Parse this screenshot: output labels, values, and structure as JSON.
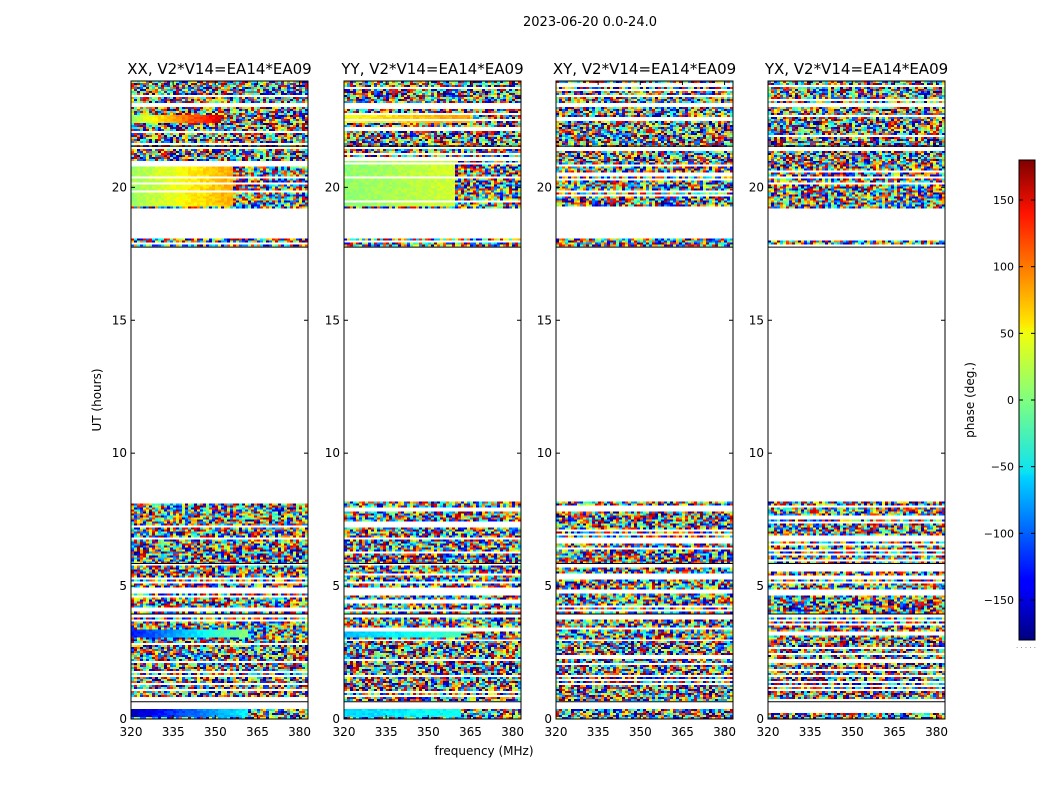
{
  "figure": {
    "title": "2023-06-20 0.0-24.0",
    "xlabel": "frequency (MHz)",
    "ylabel": "UT (hours)"
  },
  "colorbar": {
    "label": "phase (deg.)",
    "range": [
      -180,
      180
    ],
    "ticks": [
      -150,
      -100,
      -50,
      0,
      50,
      100,
      150
    ],
    "tick_labels": [
      "−150",
      "−100",
      "−50",
      "0",
      "50",
      "100",
      "150"
    ],
    "footer_mark": ". . . . ."
  },
  "chart_data": {
    "type": "heatmap",
    "value": "phase (deg.)",
    "colormap": "jet",
    "xlim": [
      320,
      383
    ],
    "ylim": [
      0,
      24
    ],
    "xticks": [
      320,
      335,
      350,
      365,
      380
    ],
    "yticks": [
      0,
      5,
      10,
      15,
      20
    ],
    "panels": [
      {
        "title": "XX, V2*V14=EA14*EA09",
        "smooth_bands": [
          {
            "t0": 0.1,
            "t1": 0.4,
            "f0": 320,
            "f1": 362,
            "phase0": -160,
            "phase1": -45
          },
          {
            "t0": 3.05,
            "t1": 3.4,
            "f0": 320,
            "f1": 362,
            "phase0": -130,
            "phase1": 10
          },
          {
            "t0": 22.45,
            "t1": 22.7,
            "f0": 320,
            "f1": 352,
            "phase0": 10,
            "phase1": 150
          },
          {
            "t0": 19.3,
            "t1": 21.0,
            "f0": 320,
            "f1": 356,
            "phase0": 10,
            "phase1": 75
          }
        ]
      },
      {
        "title": "YY, V2*V14=EA14*EA09",
        "smooth_bands": [
          {
            "t0": 0.1,
            "t1": 0.4,
            "f0": 320,
            "f1": 362,
            "phase0": -60,
            "phase1": -40
          },
          {
            "t0": 3.05,
            "t1": 3.4,
            "f0": 320,
            "f1": 362,
            "phase0": -70,
            "phase1": -20
          },
          {
            "t0": 22.45,
            "t1": 22.7,
            "f0": 320,
            "f1": 365,
            "phase0": 40,
            "phase1": 80
          },
          {
            "t0": 19.3,
            "t1": 21.0,
            "f0": 320,
            "f1": 360,
            "phase0": 5,
            "phase1": 30
          }
        ]
      },
      {
        "title": "XY, V2*V14=EA14*EA09",
        "smooth_bands": []
      },
      {
        "title": "YX, V2*V14=EA14*EA09",
        "smooth_bands": []
      }
    ],
    "data_intervals_hours": [
      [
        0.0,
        0.35
      ],
      [
        0.65,
        1.55
      ],
      [
        1.65,
        3.85
      ],
      [
        3.95,
        4.75
      ],
      [
        4.85,
        5.75
      ],
      [
        5.85,
        6.75
      ],
      [
        6.85,
        8.2
      ],
      [
        17.75,
        18.05
      ],
      [
        19.2,
        21.45
      ],
      [
        21.55,
        23.05
      ],
      [
        23.15,
        24.0
      ]
    ],
    "gap_intervals_hours": [
      [
        0.35,
        0.65
      ],
      [
        1.55,
        1.65
      ],
      [
        3.85,
        3.95
      ],
      [
        4.75,
        4.85
      ],
      [
        5.75,
        5.85
      ],
      [
        6.75,
        6.85
      ],
      [
        8.2,
        17.75
      ],
      [
        18.05,
        19.2
      ],
      [
        21.45,
        21.55
      ],
      [
        23.05,
        23.15
      ]
    ]
  }
}
